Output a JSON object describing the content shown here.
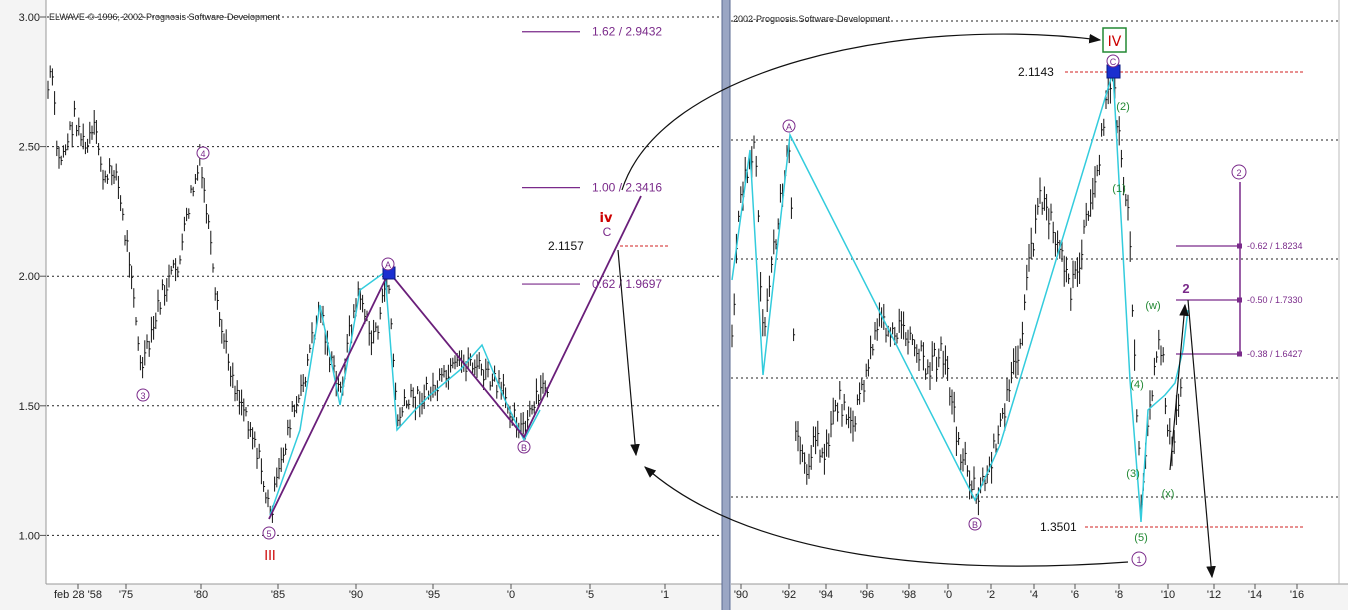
{
  "left_chart": {
    "copyright": "ELWAVE-©-1996,-2002-Prognosis Software-Development",
    "y_ticks": [
      "3.00",
      "2.50",
      "2.00",
      "1.50",
      "1.00"
    ],
    "x_ticks": [
      "feb 28 '58",
      "'75",
      "'80",
      "'85",
      "'90",
      "'95",
      "'0",
      "'5",
      "'1"
    ],
    "fib_levels": [
      {
        "label": "1.62 / 2.9432",
        "value": 2.9432
      },
      {
        "label": "1.00 / 2.3416",
        "value": 2.3416
      },
      {
        "label": "0.62 / 1.9697",
        "value": 1.9697
      }
    ],
    "target_label": "2.1157",
    "target_value": 2.1157,
    "wave_labels": {
      "w3": "3",
      "w4": "4",
      "w5": "5",
      "wA": "A",
      "wB": "B",
      "big_iii": "III",
      "big_iv": "iv",
      "big_c": "C"
    }
  },
  "right_chart": {
    "copyright": "2002-Prognosis Software-Development",
    "x_ticks": [
      "'90",
      "'92",
      "'94",
      "'96",
      "'98",
      "'0",
      "'2",
      "'4",
      "'6",
      "'8",
      "'10",
      "'12",
      "'14",
      "'16"
    ],
    "high_label": "2.1143",
    "low_label": "1.3501",
    "fib_levels": [
      {
        "label": "-0.62 / 1.8234",
        "value": 1.8234
      },
      {
        "label": "-0.50 / 1.7330",
        "value": 1.733
      },
      {
        "label": "-0.38 / 1.6427",
        "value": 1.6427
      }
    ],
    "wave_labels": {
      "big_iv": "IV",
      "wA": "A",
      "wB": "B",
      "wC": "C",
      "w1": "1",
      "w2": "2",
      "w3": "3",
      "w4": "4",
      "w5": "5",
      "ww": "w",
      "wx": "x",
      "circ1": "1",
      "circ2": "2",
      "bold2": "2"
    }
  },
  "colors": {
    "zigzag_cyan": "#33ccdd",
    "projection_purple": "#6a1f7a",
    "fib_purple": "#7a2a8a",
    "wave_red": "#cc0000",
    "wave_green": "#228833",
    "pivot_blue": "#1a2fd0"
  },
  "chart_data": [
    {
      "type": "ohlc",
      "series": [
        {
          "name": "",
          "x": [
            "'58",
            "'75",
            "'80",
            "'85",
            "'90",
            "'92",
            "'95",
            "'0",
            "'2"
          ],
          "values": [
            2.8,
            1.62,
            2.43,
            1.05,
            2.01,
            2.01,
            1.55,
            1.37,
            1.57
          ]
        }
      ],
      "ylim": [
        0.82,
        3.0
      ],
      "grid": true
    },
    {
      "type": "ohlc",
      "series": [
        {
          "name": "",
          "x": [
            "'90",
            "'92",
            "'0",
            "'2",
            "'8",
            "'9",
            "'10"
          ],
          "values": [
            1.85,
            2.0,
            1.38,
            1.4,
            2.1143,
            1.3501,
            1.73
          ]
        }
      ],
      "grid": true
    }
  ]
}
